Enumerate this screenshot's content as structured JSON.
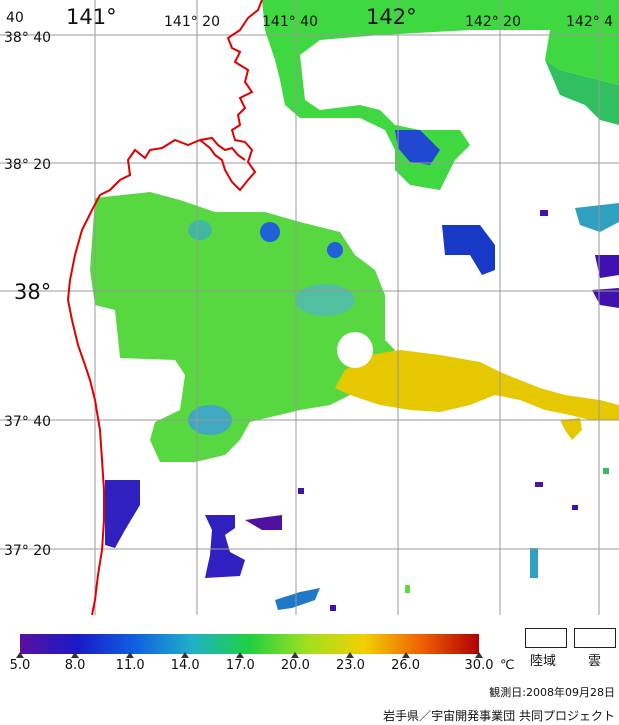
{
  "map": {
    "lon_labels_big": [
      "141°",
      "142°"
    ],
    "lon_labels_small": [
      "141° 20",
      "141° 40",
      "142° 20",
      "142° 4"
    ],
    "corner_label": "40",
    "lat_labels": [
      "38° 40",
      "38° 20",
      "38°",
      "37° 40",
      "37° 20"
    ]
  },
  "colorbar": {
    "min": 5.0,
    "max": 30.0,
    "ticks": [
      "5.0",
      "8.0",
      "11.0",
      "14.0",
      "17.0",
      "20.0",
      "23.0",
      "26.0",
      "30.0"
    ],
    "unit": "℃",
    "colors": [
      "#5a10a0",
      "#1a1ac8",
      "#1060e0",
      "#20b0c8",
      "#20d040",
      "#a0e020",
      "#f0d000",
      "#f06000",
      "#b00000"
    ]
  },
  "legend": {
    "land_label": "陸域",
    "cloud_label": "雲"
  },
  "footer": {
    "observation_date": "観測日:2008年09月28日",
    "credit": "岩手県／宇宙開発事業団 共同プロジェクト"
  },
  "colors": {
    "coastline": "#e00000",
    "grid": "#999999",
    "green": "#40d040",
    "yellow": "#e8c800",
    "blue": "#1840d0",
    "purple": "#4010b0",
    "cyan": "#40a0c0"
  }
}
